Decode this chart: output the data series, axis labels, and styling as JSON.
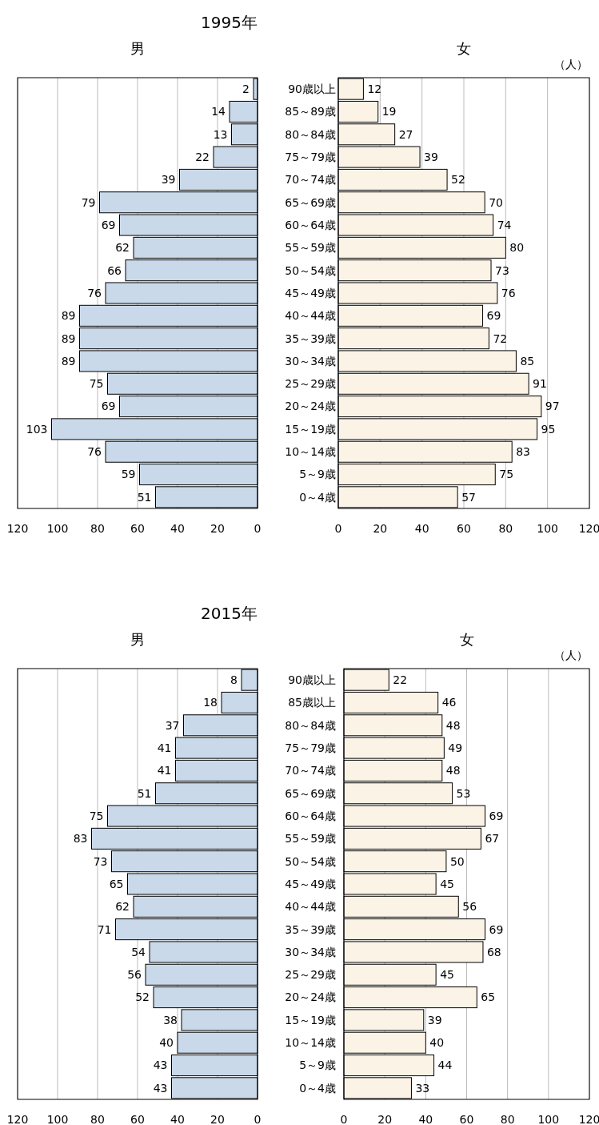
{
  "chart_data": [
    {
      "type": "bar",
      "orientation": "horizontal",
      "title": "1995年",
      "subtitle": "男",
      "categories": [
        "90歳以上",
        "85～89歳",
        "80～84歳",
        "75～79歳",
        "70～74歳",
        "65～69歳",
        "60～64歳",
        "55～59歳",
        "50～54歳",
        "45～49歳",
        "40～44歳",
        "35～39歳",
        "30～34歳",
        "25～29歳",
        "20～24歳",
        "15～19歳",
        "10～14歳",
        "5～9歳",
        "0～4歳"
      ],
      "values": [
        2,
        14,
        13,
        22,
        39,
        79,
        69,
        62,
        66,
        76,
        89,
        89,
        89,
        75,
        69,
        103,
        76,
        59,
        51
      ],
      "color": "#c9d9ea",
      "xlim": [
        120,
        0
      ],
      "xticks": [
        120,
        100,
        80,
        60,
        40,
        20,
        0
      ],
      "grid": "x",
      "data_labels": true
    },
    {
      "type": "bar",
      "orientation": "horizontal",
      "subtitle": "女",
      "annotations": [
        "（人）"
      ],
      "categories": [
        null,
        null,
        null,
        null,
        null,
        null,
        null,
        null,
        null,
        null,
        null,
        null,
        null,
        null,
        null,
        null,
        null,
        null,
        null
      ],
      "values": [
        12,
        19,
        27,
        39,
        52,
        70,
        74,
        80,
        73,
        76,
        69,
        72,
        85,
        91,
        97,
        95,
        83,
        75,
        57
      ],
      "color": "#fbf3e6",
      "xlim": [
        0,
        120
      ],
      "xticks": [
        0,
        20,
        40,
        60,
        80,
        100,
        120
      ],
      "grid": "x",
      "data_labels": true
    },
    {
      "type": "bar",
      "orientation": "horizontal",
      "title": "2015年",
      "subtitle": "男",
      "categories": [
        "90歳以上",
        "85歳以上",
        "80～84歳",
        "75～79歳",
        "70～74歳",
        "65～69歳",
        "60～64歳",
        "55～59歳",
        "50～54歳",
        "45～49歳",
        "40～44歳",
        "35～39歳",
        "30～34歳",
        "25～29歳",
        "20～24歳",
        "15～19歳",
        "10～14歳",
        "5～9歳",
        "0～4歳"
      ],
      "values": [
        8,
        18,
        37,
        41,
        41,
        51,
        75,
        83,
        73,
        65,
        62,
        71,
        54,
        56,
        52,
        38,
        40,
        43,
        43
      ],
      "color": "#c9d9ea",
      "xlim": [
        120,
        0
      ],
      "xticks": [
        120,
        100,
        80,
        60,
        40,
        20,
        0
      ],
      "grid": "x",
      "data_labels": true
    },
    {
      "type": "bar",
      "orientation": "horizontal",
      "subtitle": "女",
      "annotations": [
        "（人）"
      ],
      "categories": [
        null,
        null,
        null,
        null,
        null,
        null,
        null,
        null,
        null,
        null,
        null,
        null,
        null,
        null,
        null,
        null,
        null,
        null,
        null
      ],
      "values": [
        22,
        46,
        48,
        49,
        48,
        53,
        69,
        67,
        50,
        45,
        56,
        69,
        68,
        45,
        65,
        39,
        40,
        44,
        33
      ],
      "color": "#fbf3e6",
      "xlim": [
        0,
        120
      ],
      "xticks": [
        0,
        20,
        40,
        60,
        80,
        100,
        120
      ],
      "grid": "x",
      "data_labels": true
    }
  ]
}
